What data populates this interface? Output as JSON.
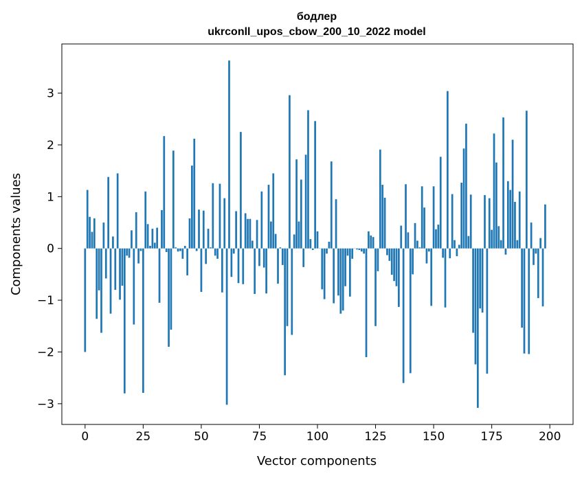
{
  "chart_data": {
    "type": "bar",
    "title": "бодлер",
    "subtitle": "ukrconll_upos_cbow_200_10_2022 model",
    "xlabel": "Vector components",
    "ylabel": "Components values",
    "xlim": [
      -10,
      210
    ],
    "ylim": [
      -3.4,
      3.95
    ],
    "xticks": [
      0,
      25,
      50,
      75,
      100,
      125,
      150,
      175,
      200
    ],
    "xtick_labels": [
      "0",
      "25",
      "50",
      "75",
      "100",
      "125",
      "150",
      "175",
      "200"
    ],
    "yticks": [
      -3,
      -2,
      -1,
      0,
      1,
      2,
      3
    ],
    "ytick_labels": [
      "−3",
      "−2",
      "−1",
      "0",
      "1",
      "2",
      "3"
    ],
    "bar_color": "#1f77b4",
    "grid": false,
    "values": [
      -2.0,
      1.13,
      0.61,
      0.32,
      0.58,
      -1.36,
      -0.81,
      -1.63,
      0.5,
      -0.58,
      1.38,
      -1.26,
      0.23,
      -0.8,
      1.45,
      -0.99,
      -0.72,
      -2.8,
      -0.14,
      -0.18,
      0.35,
      -1.47,
      0.7,
      -0.29,
      -0.05,
      -2.79,
      1.1,
      0.47,
      0.05,
      0.38,
      0.11,
      0.4,
      -1.05,
      0.74,
      2.17,
      -0.07,
      -1.9,
      -1.57,
      1.89,
      0.02,
      -0.06,
      -0.05,
      -0.2,
      0.05,
      -0.52,
      0.58,
      1.6,
      2.12,
      -0.05,
      0.75,
      -0.84,
      0.73,
      -0.3,
      0.38,
      0.02,
      1.26,
      -0.14,
      -0.2,
      1.25,
      -0.85,
      0.97,
      -3.02,
      3.63,
      -0.55,
      -0.1,
      0.72,
      -0.67,
      2.25,
      -0.69,
      0.68,
      0.57,
      0.57,
      0.15,
      -0.88,
      0.55,
      -0.34,
      1.1,
      -0.37,
      -0.87,
      1.23,
      0.52,
      1.45,
      0.28,
      -0.68,
      0.02,
      -0.32,
      -2.45,
      -1.5,
      2.96,
      -1.67,
      0.27,
      1.72,
      0.52,
      1.33,
      -0.36,
      1.81,
      2.67,
      0.18,
      -0.03,
      2.46,
      0.33,
      0.0,
      -0.79,
      -0.98,
      -0.1,
      0.13,
      1.68,
      -1.06,
      0.95,
      -0.91,
      -1.26,
      -1.2,
      -0.73,
      -0.14,
      -0.93,
      -0.2,
      0.0,
      -0.02,
      -0.03,
      -0.06,
      -0.1,
      -2.1,
      0.33,
      0.25,
      0.22,
      -1.5,
      -0.44,
      1.91,
      1.23,
      0.98,
      -0.13,
      -0.24,
      -0.51,
      -0.63,
      -0.73,
      -1.13,
      0.44,
      -2.6,
      1.24,
      0.31,
      -2.41,
      -0.5,
      0.49,
      0.15,
      0.02,
      1.2,
      0.79,
      -0.29,
      -0.06,
      -1.11,
      1.2,
      0.37,
      0.46,
      1.77,
      -0.18,
      -1.14,
      3.04,
      -0.19,
      1.05,
      0.16,
      -0.15,
      0.07,
      1.27,
      1.93,
      2.41,
      0.24,
      1.04,
      -1.63,
      -2.24,
      -3.08,
      -1.16,
      -1.24,
      1.03,
      -2.42,
      0.97,
      0.36,
      2.22,
      1.66,
      0.43,
      0.16,
      2.53,
      -0.12,
      1.3,
      1.13,
      2.1,
      0.9,
      0.16,
      1.1,
      -1.53,
      -2.03,
      2.66,
      -2.04,
      0.5,
      -0.32,
      -0.1,
      -0.96,
      0.2,
      -1.12,
      0.85
    ]
  }
}
